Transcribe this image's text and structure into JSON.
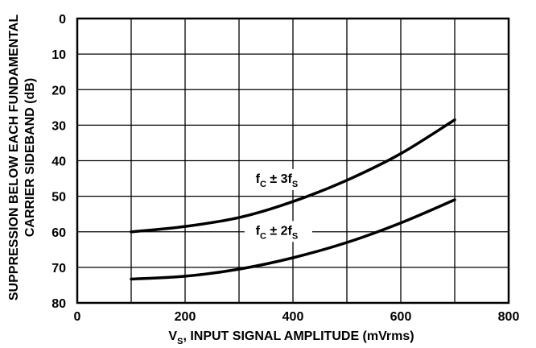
{
  "chart_data": {
    "type": "line",
    "xlabel": "Vₛ, INPUT SIGNAL AMPLITUDE (mVrms)",
    "xlabel_main": "V",
    "xlabel_sub": "S",
    "xlabel_rest": ", INPUT SIGNAL AMPLITUDE (mVrms)",
    "ylabel_line1": "SUPPRESSION BELOW EACH FUNDAMENTAL",
    "ylabel_line2": "CARRIER SIDEBAND (dB)",
    "xlim": [
      0,
      800
    ],
    "ylim": [
      0,
      80
    ],
    "y_inverted": true,
    "x_ticks": [
      "0",
      "200",
      "400",
      "600",
      "800"
    ],
    "y_ticks": [
      "0",
      "10",
      "20",
      "30",
      "40",
      "50",
      "60",
      "70",
      "80"
    ],
    "grid": true,
    "series": [
      {
        "name": "fC ± 3fS",
        "label_main": "f",
        "label_sub1": "C",
        "label_mid": " ± 3f",
        "label_sub2": "S",
        "x": [
          100,
          200,
          300,
          400,
          500,
          600,
          700
        ],
        "values": [
          60,
          58.5,
          56,
          51.5,
          45.5,
          38,
          28.5
        ]
      },
      {
        "name": "fC ± 2fS",
        "label_main": "f",
        "label_sub1": "C",
        "label_mid": " ± 2f",
        "label_sub2": "S",
        "x": [
          100,
          200,
          300,
          400,
          500,
          600,
          700
        ],
        "values": [
          73.3,
          72.5,
          70.5,
          67.3,
          63,
          57.5,
          51
        ]
      }
    ]
  }
}
